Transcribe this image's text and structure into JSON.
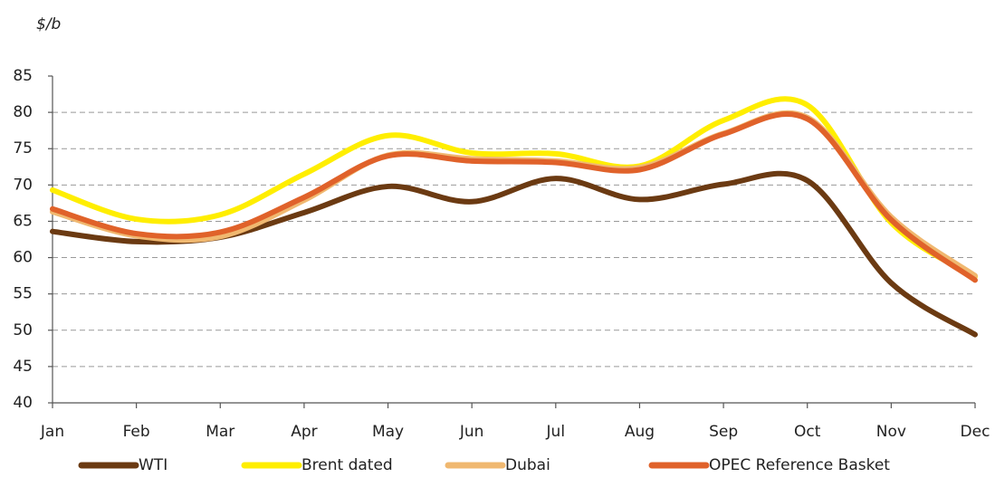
{
  "chart_data": {
    "type": "line",
    "y_label": "$/b",
    "categories": [
      "Jan",
      "Feb",
      "Mar",
      "Apr",
      "May",
      "Jun",
      "Jul",
      "Aug",
      "Sep",
      "Oct",
      "Nov",
      "Dec"
    ],
    "series": [
      {
        "name": "WTI",
        "color": "#6b3a12",
        "values": [
          63.6,
          62.2,
          62.8,
          66.2,
          69.8,
          67.7,
          70.9,
          68.0,
          70.1,
          70.6,
          56.5,
          49.4
        ]
      },
      {
        "name": "Brent dated",
        "color": "#ffee00",
        "values": [
          69.3,
          65.3,
          65.9,
          71.5,
          76.8,
          74.4,
          74.3,
          72.6,
          78.9,
          81.0,
          64.8,
          57.4
        ]
      },
      {
        "name": "Dubai",
        "color": "#f0b870",
        "values": [
          66.3,
          63.0,
          62.9,
          67.9,
          74.1,
          73.6,
          73.3,
          72.4,
          77.1,
          79.3,
          65.6,
          57.5
        ]
      },
      {
        "name": "OPEC Reference Basket",
        "color": "#e0622a",
        "values": [
          66.7,
          63.3,
          63.5,
          68.3,
          74.0,
          73.3,
          73.1,
          72.1,
          77.0,
          79.1,
          65.2,
          56.9
        ]
      }
    ],
    "ylim": [
      40,
      85
    ],
    "yticks": [
      40,
      45,
      50,
      55,
      60,
      65,
      70,
      75,
      80,
      85
    ],
    "grid": true
  }
}
